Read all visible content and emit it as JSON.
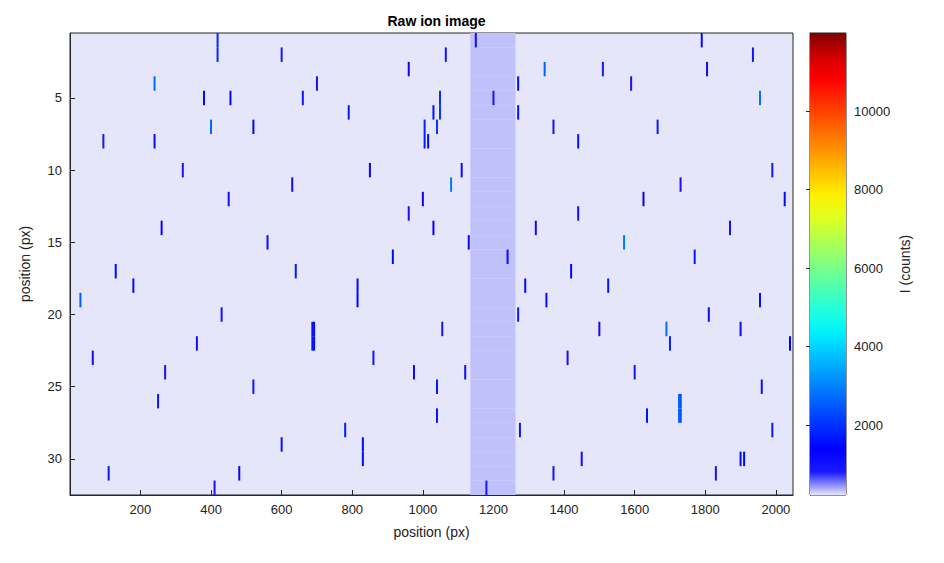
{
  "chart_data": {
    "type": "heatmap",
    "title": "Raw ion image",
    "x_label": "position (px)",
    "y_label": "position (px)",
    "xlim": [
      0.5,
      2048.5
    ],
    "ylim": [
      32.5,
      0.5
    ],
    "xticks": [
      200,
      400,
      600,
      800,
      1000,
      1200,
      1400,
      1600,
      1800,
      2000
    ],
    "yticks": [
      5,
      10,
      15,
      20,
      25,
      30
    ],
    "grid": false,
    "colorbar": {
      "label": "I (counts)",
      "lim": [
        220,
        11990
      ],
      "ticks": [
        2000,
        4000,
        6000,
        8000,
        10000
      ]
    },
    "cells": [
      [
        1135,
        1262,
        1,
        330
      ],
      [
        1135,
        1262,
        2,
        330
      ],
      [
        1135,
        1262,
        3,
        330
      ],
      [
        1135,
        1262,
        4,
        330
      ],
      [
        1135,
        1262,
        5,
        330
      ],
      [
        1135,
        1262,
        6,
        330
      ],
      [
        1135,
        1262,
        7,
        330
      ],
      [
        1135,
        1262,
        8,
        330
      ],
      [
        1135,
        1262,
        9,
        330
      ],
      [
        1135,
        1262,
        10,
        330
      ],
      [
        1135,
        1262,
        11,
        330
      ],
      [
        1135,
        1262,
        12,
        330
      ],
      [
        1135,
        1262,
        13,
        330
      ],
      [
        1135,
        1262,
        14,
        330
      ],
      [
        1135,
        1262,
        15,
        330
      ],
      [
        1135,
        1262,
        16,
        330
      ],
      [
        1135,
        1262,
        17,
        330
      ],
      [
        1135,
        1262,
        18,
        330
      ],
      [
        1135,
        1262,
        19,
        330
      ],
      [
        1135,
        1262,
        20,
        330
      ],
      [
        1135,
        1262,
        21,
        330
      ],
      [
        1135,
        1262,
        22,
        330
      ],
      [
        1135,
        1262,
        23,
        330
      ],
      [
        1135,
        1262,
        24,
        330
      ],
      [
        1135,
        1262,
        25,
        330
      ],
      [
        1135,
        1262,
        26,
        330
      ],
      [
        1135,
        1262,
        27,
        330
      ],
      [
        1135,
        1262,
        28,
        330
      ],
      [
        1135,
        1262,
        29,
        330
      ],
      [
        1135,
        1262,
        30,
        330
      ],
      [
        1135,
        1262,
        31,
        330
      ],
      [
        1135,
        1262,
        32,
        330
      ],
      [
        418,
        419,
        1,
        1900
      ],
      [
        418,
        419,
        2,
        1900
      ],
      [
        1150,
        1150,
        1,
        1100
      ],
      [
        1065,
        1065,
        2,
        1000
      ],
      [
        1790,
        1790,
        1,
        1200
      ],
      [
        1935,
        1935,
        2,
        1000
      ],
      [
        600,
        600,
        2,
        900
      ],
      [
        1345,
        1345,
        3,
        2600
      ],
      [
        960,
        960,
        3,
        1300
      ],
      [
        1805,
        1805,
        3,
        1100
      ],
      [
        1510,
        1510,
        3,
        900
      ],
      [
        240,
        240,
        4,
        2700
      ],
      [
        700,
        700,
        4,
        1000
      ],
      [
        1270,
        1270,
        4,
        1200
      ],
      [
        1590,
        1590,
        4,
        1000
      ],
      [
        380,
        380,
        5,
        1500
      ],
      [
        455,
        455,
        5,
        1300
      ],
      [
        660,
        660,
        5,
        1000
      ],
      [
        1048,
        1049,
        5,
        2000
      ],
      [
        1048,
        1049,
        6,
        2100
      ],
      [
        1955,
        1955,
        5,
        2800
      ],
      [
        1200,
        1200,
        5,
        900
      ],
      [
        1030,
        1030,
        6,
        1600
      ],
      [
        1040,
        1040,
        7,
        2000
      ],
      [
        1270,
        1270,
        6,
        1100
      ],
      [
        790,
        790,
        6,
        1000
      ],
      [
        400,
        400,
        7,
        2700
      ],
      [
        520,
        520,
        7,
        1300
      ],
      [
        1005,
        1005,
        7,
        1800
      ],
      [
        1005,
        1005,
        8,
        1700
      ],
      [
        1370,
        1370,
        7,
        1000
      ],
      [
        1665,
        1665,
        7,
        1000
      ],
      [
        1015,
        1015,
        8,
        1500
      ],
      [
        240,
        240,
        8,
        1200
      ],
      [
        1440,
        1440,
        8,
        1100
      ],
      [
        95,
        95,
        8,
        900
      ],
      [
        850,
        850,
        10,
        1300
      ],
      [
        1110,
        1110,
        10,
        1200
      ],
      [
        320,
        320,
        10,
        1000
      ],
      [
        1990,
        1990,
        10,
        1000
      ],
      [
        1080,
        1080,
        11,
        2900
      ],
      [
        630,
        630,
        11,
        1100
      ],
      [
        1730,
        1730,
        11,
        1000
      ],
      [
        1625,
        1625,
        12,
        1400
      ],
      [
        2025,
        2025,
        12,
        1500
      ],
      [
        450,
        450,
        12,
        1100
      ],
      [
        1000,
        1000,
        12,
        1300
      ],
      [
        1440,
        1440,
        13,
        1100
      ],
      [
        960,
        960,
        13,
        1000
      ],
      [
        260,
        260,
        14,
        1300
      ],
      [
        1030,
        1030,
        14,
        1400
      ],
      [
        1320,
        1320,
        14,
        1100
      ],
      [
        1870,
        1870,
        14,
        1000
      ],
      [
        1130,
        1130,
        15,
        1300
      ],
      [
        1570,
        1570,
        15,
        2900
      ],
      [
        560,
        560,
        15,
        1100
      ],
      [
        915,
        915,
        16,
        1300
      ],
      [
        1240,
        1240,
        16,
        1200
      ],
      [
        1770,
        1770,
        16,
        1000
      ],
      [
        130,
        130,
        17,
        1500
      ],
      [
        1420,
        1420,
        17,
        1300
      ],
      [
        640,
        640,
        17,
        1000
      ],
      [
        1290,
        1290,
        18,
        1200
      ],
      [
        815,
        815,
        18,
        1500
      ],
      [
        815,
        815,
        19,
        1400
      ],
      [
        1525,
        1525,
        18,
        1700
      ],
      [
        180,
        180,
        18,
        1200
      ],
      [
        30,
        30,
        19,
        2500
      ],
      [
        1350,
        1350,
        19,
        1200
      ],
      [
        1955,
        1955,
        19,
        1100
      ],
      [
        1810,
        1810,
        20,
        1200
      ],
      [
        1270,
        1270,
        20,
        1000
      ],
      [
        430,
        430,
        20,
        1000
      ],
      [
        687,
        687,
        21,
        1600
      ],
      [
        687,
        687,
        22,
        1600
      ],
      [
        692,
        692,
        21,
        1500
      ],
      [
        692,
        692,
        22,
        1500
      ],
      [
        1500,
        1500,
        21,
        1200
      ],
      [
        1690,
        1690,
        21,
        2700
      ],
      [
        1900,
        1900,
        21,
        1200
      ],
      [
        1055,
        1055,
        21,
        1000
      ],
      [
        2040,
        2040,
        22,
        1400
      ],
      [
        1700,
        1700,
        22,
        1800
      ],
      [
        360,
        360,
        22,
        1000
      ],
      [
        65,
        65,
        23,
        1100
      ],
      [
        1410,
        1410,
        23,
        1000
      ],
      [
        860,
        860,
        23,
        1000
      ],
      [
        975,
        975,
        24,
        1200
      ],
      [
        1120,
        1120,
        24,
        1100
      ],
      [
        1600,
        1600,
        24,
        1000
      ],
      [
        270,
        270,
        24,
        1000
      ],
      [
        1040,
        1040,
        25,
        1600
      ],
      [
        1960,
        1960,
        25,
        1100
      ],
      [
        520,
        520,
        25,
        1000
      ],
      [
        1725,
        1726,
        26,
        2600
      ],
      [
        1725,
        1726,
        27,
        2600
      ],
      [
        1730,
        1731,
        26,
        2400
      ],
      [
        1730,
        1731,
        27,
        2400
      ],
      [
        1040,
        1040,
        27,
        1100
      ],
      [
        1635,
        1635,
        27,
        1100
      ],
      [
        250,
        250,
        26,
        1000
      ],
      [
        780,
        780,
        28,
        1700
      ],
      [
        1275,
        1275,
        28,
        1000
      ],
      [
        1990,
        1990,
        28,
        1000
      ],
      [
        830,
        830,
        29,
        1500
      ],
      [
        830,
        830,
        30,
        1500
      ],
      [
        1900,
        1900,
        30,
        1500
      ],
      [
        1910,
        1910,
        30,
        1400
      ],
      [
        1450,
        1450,
        30,
        1100
      ],
      [
        600,
        600,
        29,
        1100
      ],
      [
        110,
        110,
        31,
        1700
      ],
      [
        480,
        480,
        31,
        1300
      ],
      [
        1370,
        1370,
        31,
        1000
      ],
      [
        1830,
        1830,
        31,
        1000
      ],
      [
        1180,
        1180,
        32,
        900
      ],
      [
        410,
        410,
        32,
        1000
      ]
    ]
  }
}
